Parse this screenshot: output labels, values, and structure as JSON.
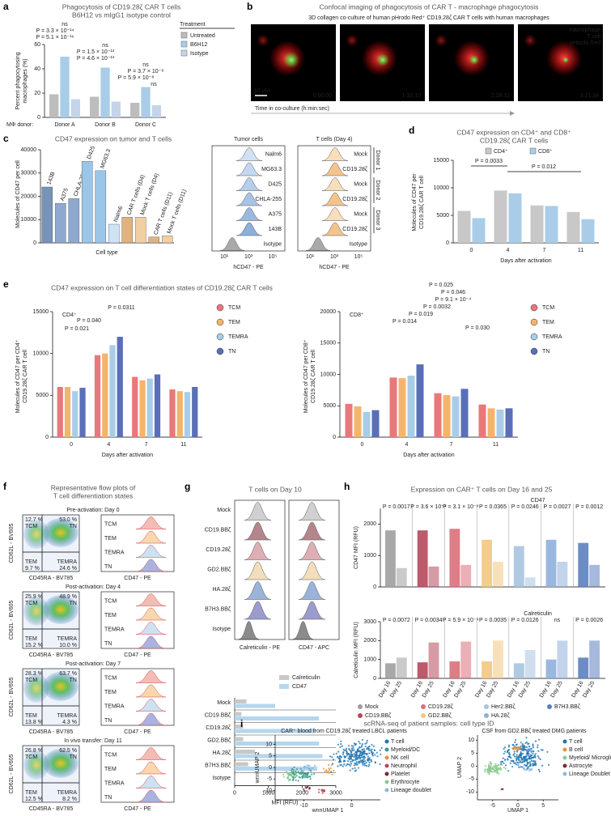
{
  "panel_a": {
    "label": "a",
    "title": "Phagocytosis of CD19.28ζ CAR T cells",
    "subtitle": "B6H12 vs mIgG1 isotype control",
    "y_label_lines": [
      "Percent phagocytosing",
      "macrophages (%)"
    ],
    "x_label": "MΦ donor:",
    "categories": [
      "Donor A",
      "Donor B",
      "Donor C"
    ],
    "legend_title": "Treatment",
    "series": [
      {
        "name": "Untreated",
        "color": "#bdbdbd",
        "values": [
          19,
          17,
          12
        ]
      },
      {
        "name": "B6H12",
        "color": "#a9cde8",
        "values": [
          50,
          41,
          25
        ]
      },
      {
        "name": "Isotype",
        "color": "#c4d5ea",
        "values": [
          15,
          13,
          10
        ]
      }
    ],
    "ylim": [
      0,
      60
    ],
    "yticks": [
      0,
      20,
      40,
      60
    ],
    "annotations": [
      "ns",
      "P = 3.3 × 10⁻¹⁴",
      "P = 5.1 × 10⁻¹⁶",
      "ns",
      "P = 1.5 × 10⁻¹³",
      "P = 4.6 × 10⁻¹³",
      "ns",
      "P = 3.7 × 10⁻⁸",
      "P = 5.9 × 10⁻⁸",
      "ns"
    ]
  },
  "panel_b": {
    "label": "b",
    "title": "Confocal imaging of phagocytosis of CAR T - macrophage phagocytosis",
    "subtitle": "3D collagen co-culture of human pHrodo Red⁺ CD19.28ζ CAR T cells with human macrophages",
    "timestamps": [
      "0:00:00",
      "1:30:10",
      "2:28:31",
      "3:21:34"
    ],
    "scale_bar": "10 μm",
    "x_label": "Time in co-culture (h:min:sec)",
    "legend": [
      {
        "name": "macrophage",
        "color": "#ff3030"
      },
      {
        "name": "T cell",
        "color": "#30e030"
      },
      {
        "name": "pHrodo Red",
        "color": "#4a5cff"
      }
    ]
  },
  "panel_c": {
    "label": "c",
    "title": "CD47 expression on tumor and T cells",
    "y_label": "Molecules of CD47 per cell",
    "x_label": "Cell type",
    "categories": [
      "143B",
      "A375",
      "CHLA-255",
      "D425",
      "MG63.3",
      "Nalm6",
      "CAR T cells (D4)",
      "Mock T cells (D4)",
      "CAR T cells (D11)",
      "Mock T cells (D11)"
    ],
    "values": [
      24000,
      17000,
      19000,
      35000,
      31000,
      8000,
      11000,
      11000,
      2500,
      3000
    ],
    "colors": [
      "#7893b8",
      "#8ea9cf",
      "#8ea9cf",
      "#9cc6e8",
      "#9cc6e8",
      "#cfe3f4",
      "#e0b27e",
      "#f2cfa2",
      "#e0b27e",
      "#f2cfa2"
    ],
    "ylim": [
      0,
      40000
    ],
    "yticks": [
      0,
      10000,
      20000,
      30000,
      40000
    ],
    "hist": {
      "tumor_title": "Tumor cells",
      "t_title": "T cells (Day 4)",
      "tumor_rows": [
        "Nalm6",
        "MG63.3",
        "D425",
        "CHLA-255",
        "A375",
        "143B",
        "Isotype"
      ],
      "t_rows": [
        "Mock",
        "CD19.28ζ",
        "Mock",
        "CD19.28ζ",
        "Mock",
        "CD19.28ζ",
        "Isotype"
      ],
      "donors": [
        "Donor 1",
        "Donor 2",
        "Donor 3"
      ],
      "x_label": "hCD47 - PE",
      "x_ticks": [
        "10¹",
        "10³",
        "10⁵"
      ]
    }
  },
  "panel_d": {
    "label": "d",
    "title": "CD47 expression on CD4⁺ and CD8⁺",
    "subtitle": "CD19.28ζ CAR T cells",
    "y_label_lines": [
      "Molecules of CD47 per",
      "CD19.28ζ CAR T cell"
    ],
    "x_label": "Days after activation",
    "categories": [
      "0",
      "4",
      "7",
      "11"
    ],
    "series": [
      {
        "name": "CD4⁺",
        "color": "#c8c8c8",
        "values": [
          5800,
          9500,
          6800,
          5600
        ]
      },
      {
        "name": "CD8⁺",
        "color": "#a9cde8",
        "values": [
          4500,
          9000,
          6700,
          4300
        ]
      }
    ],
    "ylim": [
      0,
      15000
    ],
    "yticks": [
      0,
      5000,
      10000,
      15000
    ],
    "annotations": [
      "P = 0.0033",
      "P = 0.012"
    ]
  },
  "panel_e": {
    "label": "e",
    "title": "CD47 expression on T cell differentiation states of CD19.28ζ CAR T cells",
    "left": {
      "subset": "CD4⁺",
      "y_label_lines": [
        "Molecules of CD47 per CD4⁺",
        "CD19.28ζ CAR T cell"
      ],
      "x_label": "Days after activation",
      "categories": [
        "0",
        "4",
        "7",
        "11"
      ],
      "series": [
        {
          "name": "TCM",
          "color": "#e8787a",
          "values": [
            6000,
            9800,
            7200,
            5700
          ]
        },
        {
          "name": "TEM",
          "color": "#f5b46c",
          "values": [
            6000,
            10000,
            6800,
            5500
          ]
        },
        {
          "name": "TEMRA",
          "color": "#a9cde8",
          "values": [
            5500,
            11000,
            7000,
            5400
          ]
        },
        {
          "name": "TN",
          "color": "#5a6fb8",
          "values": [
            5900,
            12000,
            7500,
            6000
          ]
        }
      ],
      "ylim": [
        0,
        15000
      ],
      "yticks": [
        0,
        5000,
        10000,
        15000
      ],
      "annotations": [
        "P = 0.0311",
        "P = 0.040",
        "P = 0.021"
      ]
    },
    "right": {
      "subset": "CD8⁺",
      "y_label_lines": [
        "Molecules of CD47 per CD8⁺",
        "CD19.28ζ CAR T cell"
      ],
      "x_label": "Days after activation",
      "categories": [
        "0",
        "4",
        "7",
        "11"
      ],
      "series": [
        {
          "name": "TCM",
          "color": "#e8787a",
          "values": [
            5300,
            9500,
            7000,
            5200
          ]
        },
        {
          "name": "TEM",
          "color": "#f5b46c",
          "values": [
            4900,
            9400,
            6700,
            4600
          ]
        },
        {
          "name": "TEMRA",
          "color": "#a9cde8",
          "values": [
            4000,
            9800,
            6500,
            4400
          ]
        },
        {
          "name": "TN",
          "color": "#5a6fb8",
          "values": [
            4300,
            11600,
            7700,
            4600
          ]
        }
      ],
      "ylim": [
        0,
        20000
      ],
      "yticks": [
        0,
        5000,
        10000,
        15000,
        20000
      ],
      "annotations": [
        "P = 0.025",
        "P = 0.046",
        "P = 9.1 × 10⁻⁴",
        "P = 0.0032",
        "P = 0.019",
        "P = 0.014",
        "P = 0.030"
      ]
    }
  },
  "panel_f": {
    "label": "f",
    "title_lines": [
      "Representative flow plots of",
      "T cell differentiation states"
    ],
    "blocks": [
      {
        "title": "Pre-activation: Day 0",
        "quadrants": [
          "12.7 %",
          "53.0 %",
          "9.7 %",
          "24.6 %"
        ]
      },
      {
        "title": "Post-activation: Day 4",
        "quadrants": [
          "25.9 %",
          "48.9 %",
          "15.2 %",
          "10.0 %"
        ]
      },
      {
        "title": "Post-activation: Day 7",
        "quadrants": [
          "28.3 %",
          "63.7 %",
          "13.8 %",
          "4.3 %"
        ]
      },
      {
        "title": "In vivo transfer: Day 11",
        "quadrants": [
          "26.8 %",
          "62.5 %",
          "12.5 %",
          "8.2 %"
        ]
      }
    ],
    "quadrant_names": [
      "TCM",
      "TN",
      "TEM",
      "TEMRA"
    ],
    "y_label": "CD62L - BV605",
    "x_label": "CD45RA - BV785",
    "hist_rows": [
      "TCM",
      "TEM",
      "TEMRA",
      "TN"
    ],
    "hist_x_label": "CD47 - PE"
  },
  "panel_g": {
    "label": "g",
    "title": "T cells on Day 10",
    "rows": [
      "Mock",
      "CD19.BBζ",
      "CD19.28ζ",
      "GD2.BBζ",
      "HA.28ζ",
      "B7H3.BBζ",
      "Isotype"
    ],
    "hist_x_labels": [
      "Calreticulin - PE",
      "CD47 - APC"
    ],
    "series": [
      {
        "name": "Calreticulin",
        "color": "#c8c8c8",
        "values": [
          350,
          200,
          250,
          250,
          600,
          400,
          30
        ]
      },
      {
        "name": "CD47",
        "color": "#b5d6ee",
        "values": [
          1200,
          2500,
          2400,
          2500,
          2600,
          2450,
          30
        ]
      }
    ],
    "xlim": [
      0,
      3000
    ],
    "xticks": [
      0,
      1000,
      2000,
      3000
    ],
    "x_label": "MFI (RFU)"
  },
  "panel_h": {
    "label": "h",
    "title": "Expression on CAR⁺ T cells on Day 16 and 25",
    "categories": [
      "Day 16",
      "Day 25"
    ],
    "groups": [
      {
        "name": "Mock",
        "color": "#9e9e9e"
      },
      {
        "name": "CD19.BBζ",
        "color": "#b5495b"
      },
      {
        "name": "CD19.28ζ",
        "color": "#d9707a"
      },
      {
        "name": "GD2.BBζ",
        "color": "#f3c77f"
      },
      {
        "name": "Her2.BBζ",
        "color": "#a7c4e0"
      },
      {
        "name": "HA.28ζ",
        "color": "#8fb0dc"
      },
      {
        "name": "B7H3.BBζ",
        "color": "#5c7fbf"
      }
    ],
    "top": {
      "group_label": "CD47",
      "y_label": "CD47 MFI (RFU)",
      "ylim": [
        0,
        2500
      ],
      "yticks": [
        0,
        1000,
        2000
      ],
      "values": [
        [
          1800,
          600
        ],
        [
          1800,
          650
        ],
        [
          1850,
          700
        ],
        [
          1500,
          800
        ],
        [
          1300,
          300
        ],
        [
          1500,
          800
        ],
        [
          1400,
          700
        ]
      ],
      "annotations": [
        "P = 0.0017",
        "P = 3.6 × 10⁻⁴",
        "P = 3.1 × 10⁻⁴",
        "P = 0.0365",
        "P = 0.0246",
        "P = 0.0027",
        "P = 0.0012"
      ]
    },
    "bottom": {
      "group_label": "Calreticulin",
      "y_label": "Calreticulin MFI (RFU)",
      "ylim": [
        0,
        3000
      ],
      "yticks": [
        0,
        1000,
        2000,
        3000
      ],
      "values": [
        [
          800,
          1100
        ],
        [
          850,
          1900
        ],
        [
          900,
          1950
        ],
        [
          900,
          2000
        ],
        [
          800,
          1500
        ],
        [
          1000,
          2000
        ],
        [
          1100,
          2000
        ]
      ],
      "annotations": [
        "P = 0.0072",
        "P = 0.0034",
        "P = 5.9 × 10⁻⁴",
        "P = 0.0035",
        "P = 0.0126",
        "ns",
        "P = 0.0026"
      ]
    }
  },
  "panel_i": {
    "label": "i",
    "title": "scRNA-seq of patient samples: cell type ID",
    "left": {
      "title": "CAR⁺ blood from CD19.28ζ treated LBCL patients",
      "x_label": "wnnUMAP 1",
      "y_label": "wnnUMAP 2",
      "xlim": [
        -16,
        6
      ],
      "ylim": [
        -14,
        14
      ],
      "xticks": [
        -10,
        0
      ],
      "yticks": [
        -10,
        -5,
        0,
        5,
        10
      ],
      "legend": [
        {
          "name": "T cell",
          "color": "#1f77b4"
        },
        {
          "name": "Myeloid/DC",
          "color": "#3a9a8a"
        },
        {
          "name": "NK cell",
          "color": "#e8923a"
        },
        {
          "name": "Neutrophil",
          "color": "#b5495b"
        },
        {
          "name": "Platelet",
          "color": "#7a2a3a"
        },
        {
          "name": "Erythrocyte",
          "color": "#8fc98f"
        },
        {
          "name": "Lineage doublet",
          "color": "#8fb8e0"
        }
      ]
    },
    "right": {
      "title": "CSF from GD2.BBζ treated DMG patients",
      "x_label": "UMAP 1",
      "y_label": "UMAP 2",
      "xlim": [
        -8,
        8
      ],
      "ylim": [
        -13,
        12
      ],
      "xticks": [
        -5,
        0,
        5
      ],
      "yticks": [
        -10,
        -5,
        0,
        5,
        10
      ],
      "legend": [
        {
          "name": "T cell",
          "color": "#1f77b4"
        },
        {
          "name": "B cell",
          "color": "#e8923a"
        },
        {
          "name": "Myeloid/ Microglia",
          "color": "#8fc98f"
        },
        {
          "name": "Astrocyte",
          "color": "#7a2a3a"
        },
        {
          "name": "Lineage Doublet",
          "color": "#8fb8e0"
        }
      ]
    }
  }
}
